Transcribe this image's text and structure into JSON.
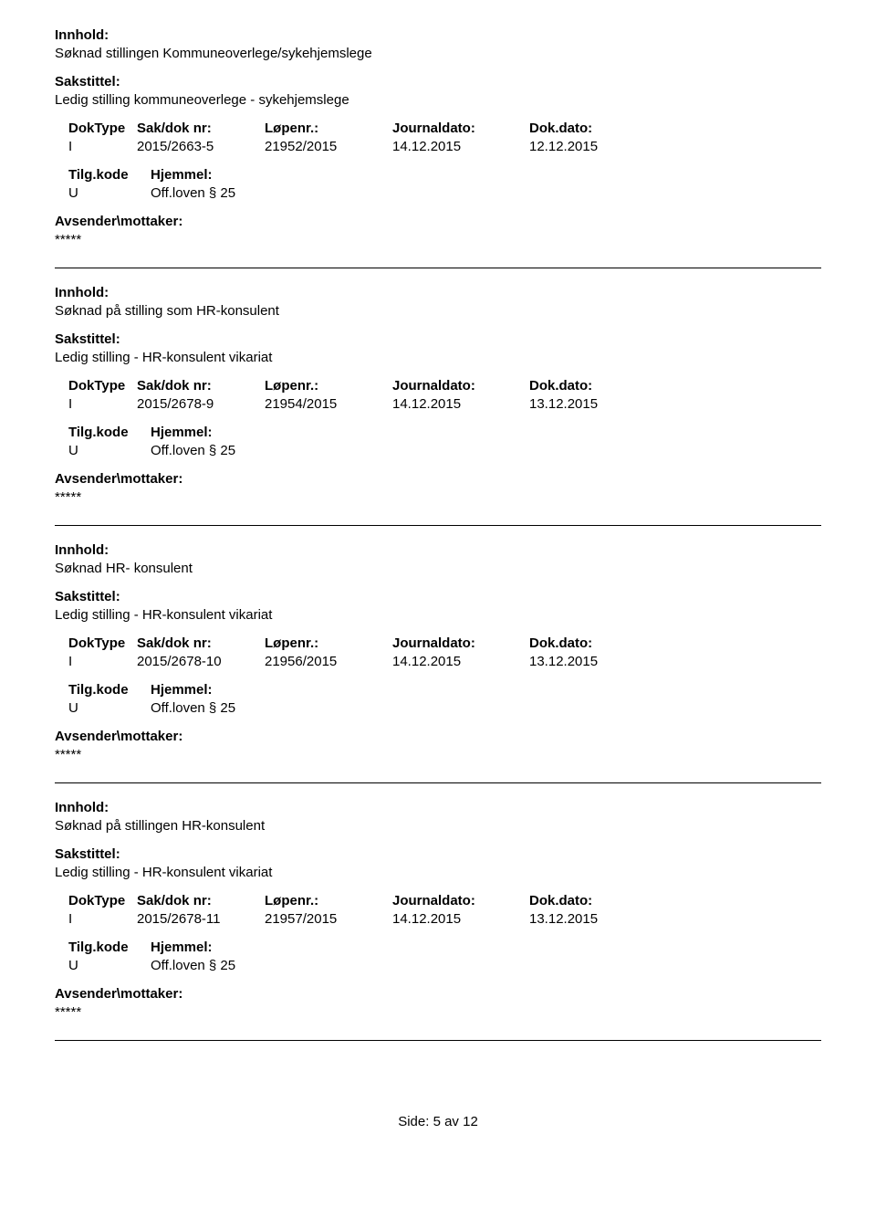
{
  "labels": {
    "innhold": "Innhold:",
    "sakstittel": "Sakstittel:",
    "doktype": "DokType",
    "saknr": "Sak/dok nr:",
    "lopenr": "Løpenr.:",
    "journaldato": "Journaldato:",
    "dokdato": "Dok.dato:",
    "tilgkode": "Tilg.kode",
    "hjemmel": "Hjemmel:",
    "avsender": "Avsender\\mottaker:"
  },
  "entries": [
    {
      "innhold": "Søknad stillingen Kommuneoverlege/sykehjemslege",
      "sakstittel": "Ledig stilling kommuneoverlege - sykehjemslege",
      "doktype": "I",
      "saknr": "2015/2663-5",
      "lopenr": "21952/2015",
      "journaldato": "14.12.2015",
      "dokdato": "12.12.2015",
      "tilgkode": "U",
      "hjemmel": "Off.loven § 25",
      "avsender": "*****"
    },
    {
      "innhold": "Søknad på stilling som HR-konsulent",
      "sakstittel": "Ledig stilling - HR-konsulent vikariat",
      "doktype": "I",
      "saknr": "2015/2678-9",
      "lopenr": "21954/2015",
      "journaldato": "14.12.2015",
      "dokdato": "13.12.2015",
      "tilgkode": "U",
      "hjemmel": "Off.loven § 25",
      "avsender": "*****"
    },
    {
      "innhold": "Søknad  HR- konsulent",
      "sakstittel": "Ledig stilling - HR-konsulent vikariat",
      "doktype": "I",
      "saknr": "2015/2678-10",
      "lopenr": "21956/2015",
      "journaldato": "14.12.2015",
      "dokdato": "13.12.2015",
      "tilgkode": "U",
      "hjemmel": "Off.loven § 25",
      "avsender": "*****"
    },
    {
      "innhold": "Søknad på stillingen HR-konsulent",
      "sakstittel": "Ledig stilling - HR-konsulent vikariat",
      "doktype": "I",
      "saknr": "2015/2678-11",
      "lopenr": "21957/2015",
      "journaldato": "14.12.2015",
      "dokdato": "13.12.2015",
      "tilgkode": "U",
      "hjemmel": "Off.loven § 25",
      "avsender": "*****"
    }
  ],
  "footer": {
    "prefix": "Side:",
    "current": "5",
    "sep": "av",
    "total": "12"
  }
}
